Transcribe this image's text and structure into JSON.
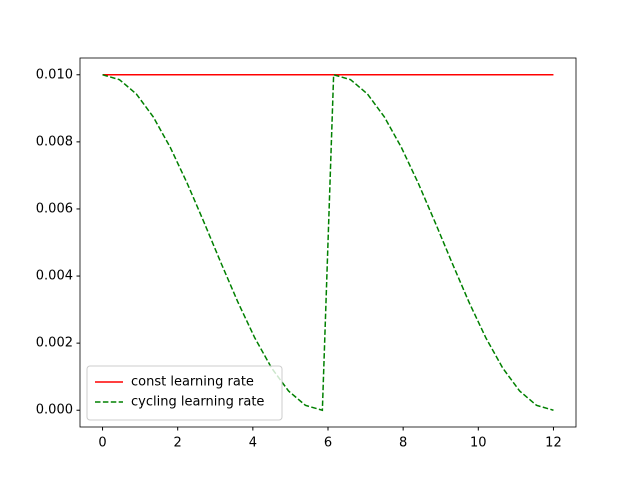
{
  "chart_data": {
    "type": "line",
    "legend": "lower left",
    "xlim": [
      -0.6,
      12.6
    ],
    "ylim": [
      -0.0005,
      0.0105
    ],
    "xticks": [
      0,
      2,
      4,
      6,
      8,
      10,
      12
    ],
    "yticks": [
      {
        "value": 0,
        "label": "0.000"
      },
      {
        "value": 0.002,
        "label": "0.002"
      },
      {
        "value": 0.004,
        "label": "0.004"
      },
      {
        "value": 0.006,
        "label": "0.006"
      },
      {
        "value": 0.008,
        "label": "0.008"
      },
      {
        "value": 0.01,
        "label": "0.010"
      }
    ],
    "series": [
      {
        "name": "const learning rate",
        "color": "#ff0000",
        "dash": "solid",
        "x": [
          0,
          12
        ],
        "values": [
          0.01,
          0.01
        ]
      },
      {
        "name": "cycling learning rate",
        "color": "#008000",
        "dash": "dashed",
        "x": [
          0,
          0.45,
          0.9,
          1.35,
          1.8,
          2.25,
          2.7,
          3.15,
          3.6,
          4.05,
          4.5,
          4.95,
          5.4,
          5.85,
          6.15,
          6.6,
          7.05,
          7.5,
          7.95,
          8.4,
          8.85,
          9.3,
          9.75,
          10.2,
          10.65,
          11.1,
          11.55,
          12
        ],
        "values": [
          0.01,
          0.009855,
          0.009427,
          0.008743,
          0.00784,
          0.006773,
          0.005603,
          0.004397,
          0.003227,
          0.00216,
          0.001257,
          0.000573,
          0.000145,
          0,
          0.01,
          0.009855,
          0.009427,
          0.008743,
          0.00784,
          0.006773,
          0.005603,
          0.004397,
          0.003227,
          0.00216,
          0.001257,
          0.000573,
          0.000145,
          0
        ]
      }
    ]
  }
}
